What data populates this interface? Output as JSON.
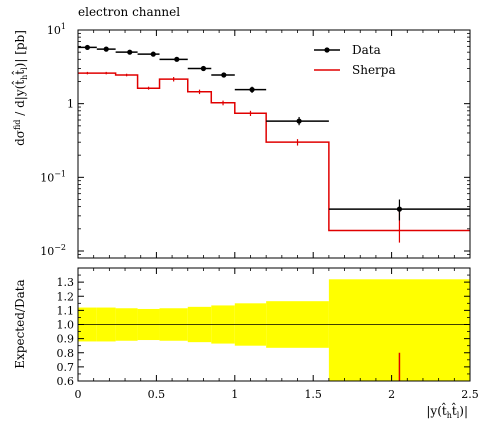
{
  "title": "electron channel",
  "chart_data": [
    {
      "type": "line",
      "panel": "main",
      "title": "electron channel",
      "xlabel": "",
      "ylabel": "dσ^fid / d|y(t̂_h t̂_l)| [pb]",
      "yscale": "log",
      "ylim": [
        0.008,
        10
      ],
      "xlim": [
        0,
        2.5
      ],
      "grid": false,
      "legend_position": "top-right",
      "ytick_labels": [
        "10^1",
        "1",
        "10^-1",
        "10^-2"
      ],
      "bins": [
        [
          0,
          0.12
        ],
        [
          0.12,
          0.24
        ],
        [
          0.24,
          0.38
        ],
        [
          0.38,
          0.52
        ],
        [
          0.52,
          0.7
        ],
        [
          0.7,
          0.85
        ],
        [
          0.85,
          1.0
        ],
        [
          1.0,
          1.2
        ],
        [
          1.2,
          1.6
        ],
        [
          1.6,
          2.5
        ]
      ],
      "series": [
        {
          "name": "Data",
          "kind": "points",
          "color": "#000000",
          "x": [
            0.06,
            0.18,
            0.33,
            0.48,
            0.63,
            0.8,
            0.93,
            1.11,
            1.41,
            2.05
          ],
          "values": [
            5.8,
            5.5,
            5.0,
            4.7,
            4.0,
            3.0,
            2.45,
            1.55,
            0.58,
            0.037
          ],
          "err_low": [
            5.5,
            5.2,
            4.7,
            4.4,
            3.75,
            2.8,
            2.3,
            1.4,
            0.51,
            0.026
          ],
          "err_high": [
            6.1,
            5.8,
            5.3,
            5.0,
            4.25,
            3.2,
            2.6,
            1.7,
            0.66,
            0.05
          ]
        },
        {
          "name": "Sherpa",
          "kind": "histogram",
          "color": "#e00000",
          "values": [
            2.6,
            2.6,
            2.45,
            1.62,
            2.15,
            1.45,
            1.03,
            0.74,
            0.3,
            0.019
          ],
          "err_low": [
            2.5,
            2.5,
            2.35,
            1.55,
            2.0,
            1.35,
            0.95,
            0.68,
            0.27,
            0.013
          ],
          "err_high": [
            2.7,
            2.7,
            2.55,
            1.7,
            2.3,
            1.55,
            1.1,
            0.8,
            0.33,
            0.035
          ]
        }
      ]
    },
    {
      "type": "area",
      "panel": "ratio",
      "xlabel": "|y(t̂_h t̂_l)|",
      "ylabel": "Expected/Data",
      "ylim": [
        0.6,
        1.4
      ],
      "xlim": [
        0,
        2.5
      ],
      "grid": false,
      "x_ticks": [
        0,
        0.5,
        1,
        1.5,
        2,
        2.5
      ],
      "x_tick_labels": [
        "0",
        "0.5",
        "1",
        "1.5",
        "2",
        "2.5"
      ],
      "y_ticks": [
        0.6,
        0.7,
        0.8,
        0.9,
        1.0,
        1.1,
        1.2,
        1.3
      ],
      "y_tick_labels": [
        "0.6",
        "0.7",
        "0.8",
        "0.9",
        "1.0",
        "1.1",
        "1.2",
        "1.3"
      ],
      "reference_line": 1.0,
      "band": {
        "color": "#ffff00",
        "low": [
          0.88,
          0.88,
          0.885,
          0.89,
          0.885,
          0.875,
          0.865,
          0.85,
          0.835,
          0.6
        ],
        "high": [
          1.12,
          1.12,
          1.115,
          1.11,
          1.115,
          1.125,
          1.135,
          1.15,
          1.165,
          1.32
        ]
      },
      "series": [
        {
          "name": "Sherpa",
          "kind": "ratio-points",
          "color": "#e00000",
          "values": [
            null,
            null,
            null,
            null,
            null,
            null,
            null,
            null,
            null,
            0.55
          ],
          "err_low": [
            null,
            null,
            null,
            null,
            null,
            null,
            null,
            null,
            null,
            0.3
          ],
          "err_high": [
            null,
            null,
            null,
            null,
            null,
            null,
            null,
            null,
            null,
            0.8
          ]
        }
      ]
    }
  ]
}
